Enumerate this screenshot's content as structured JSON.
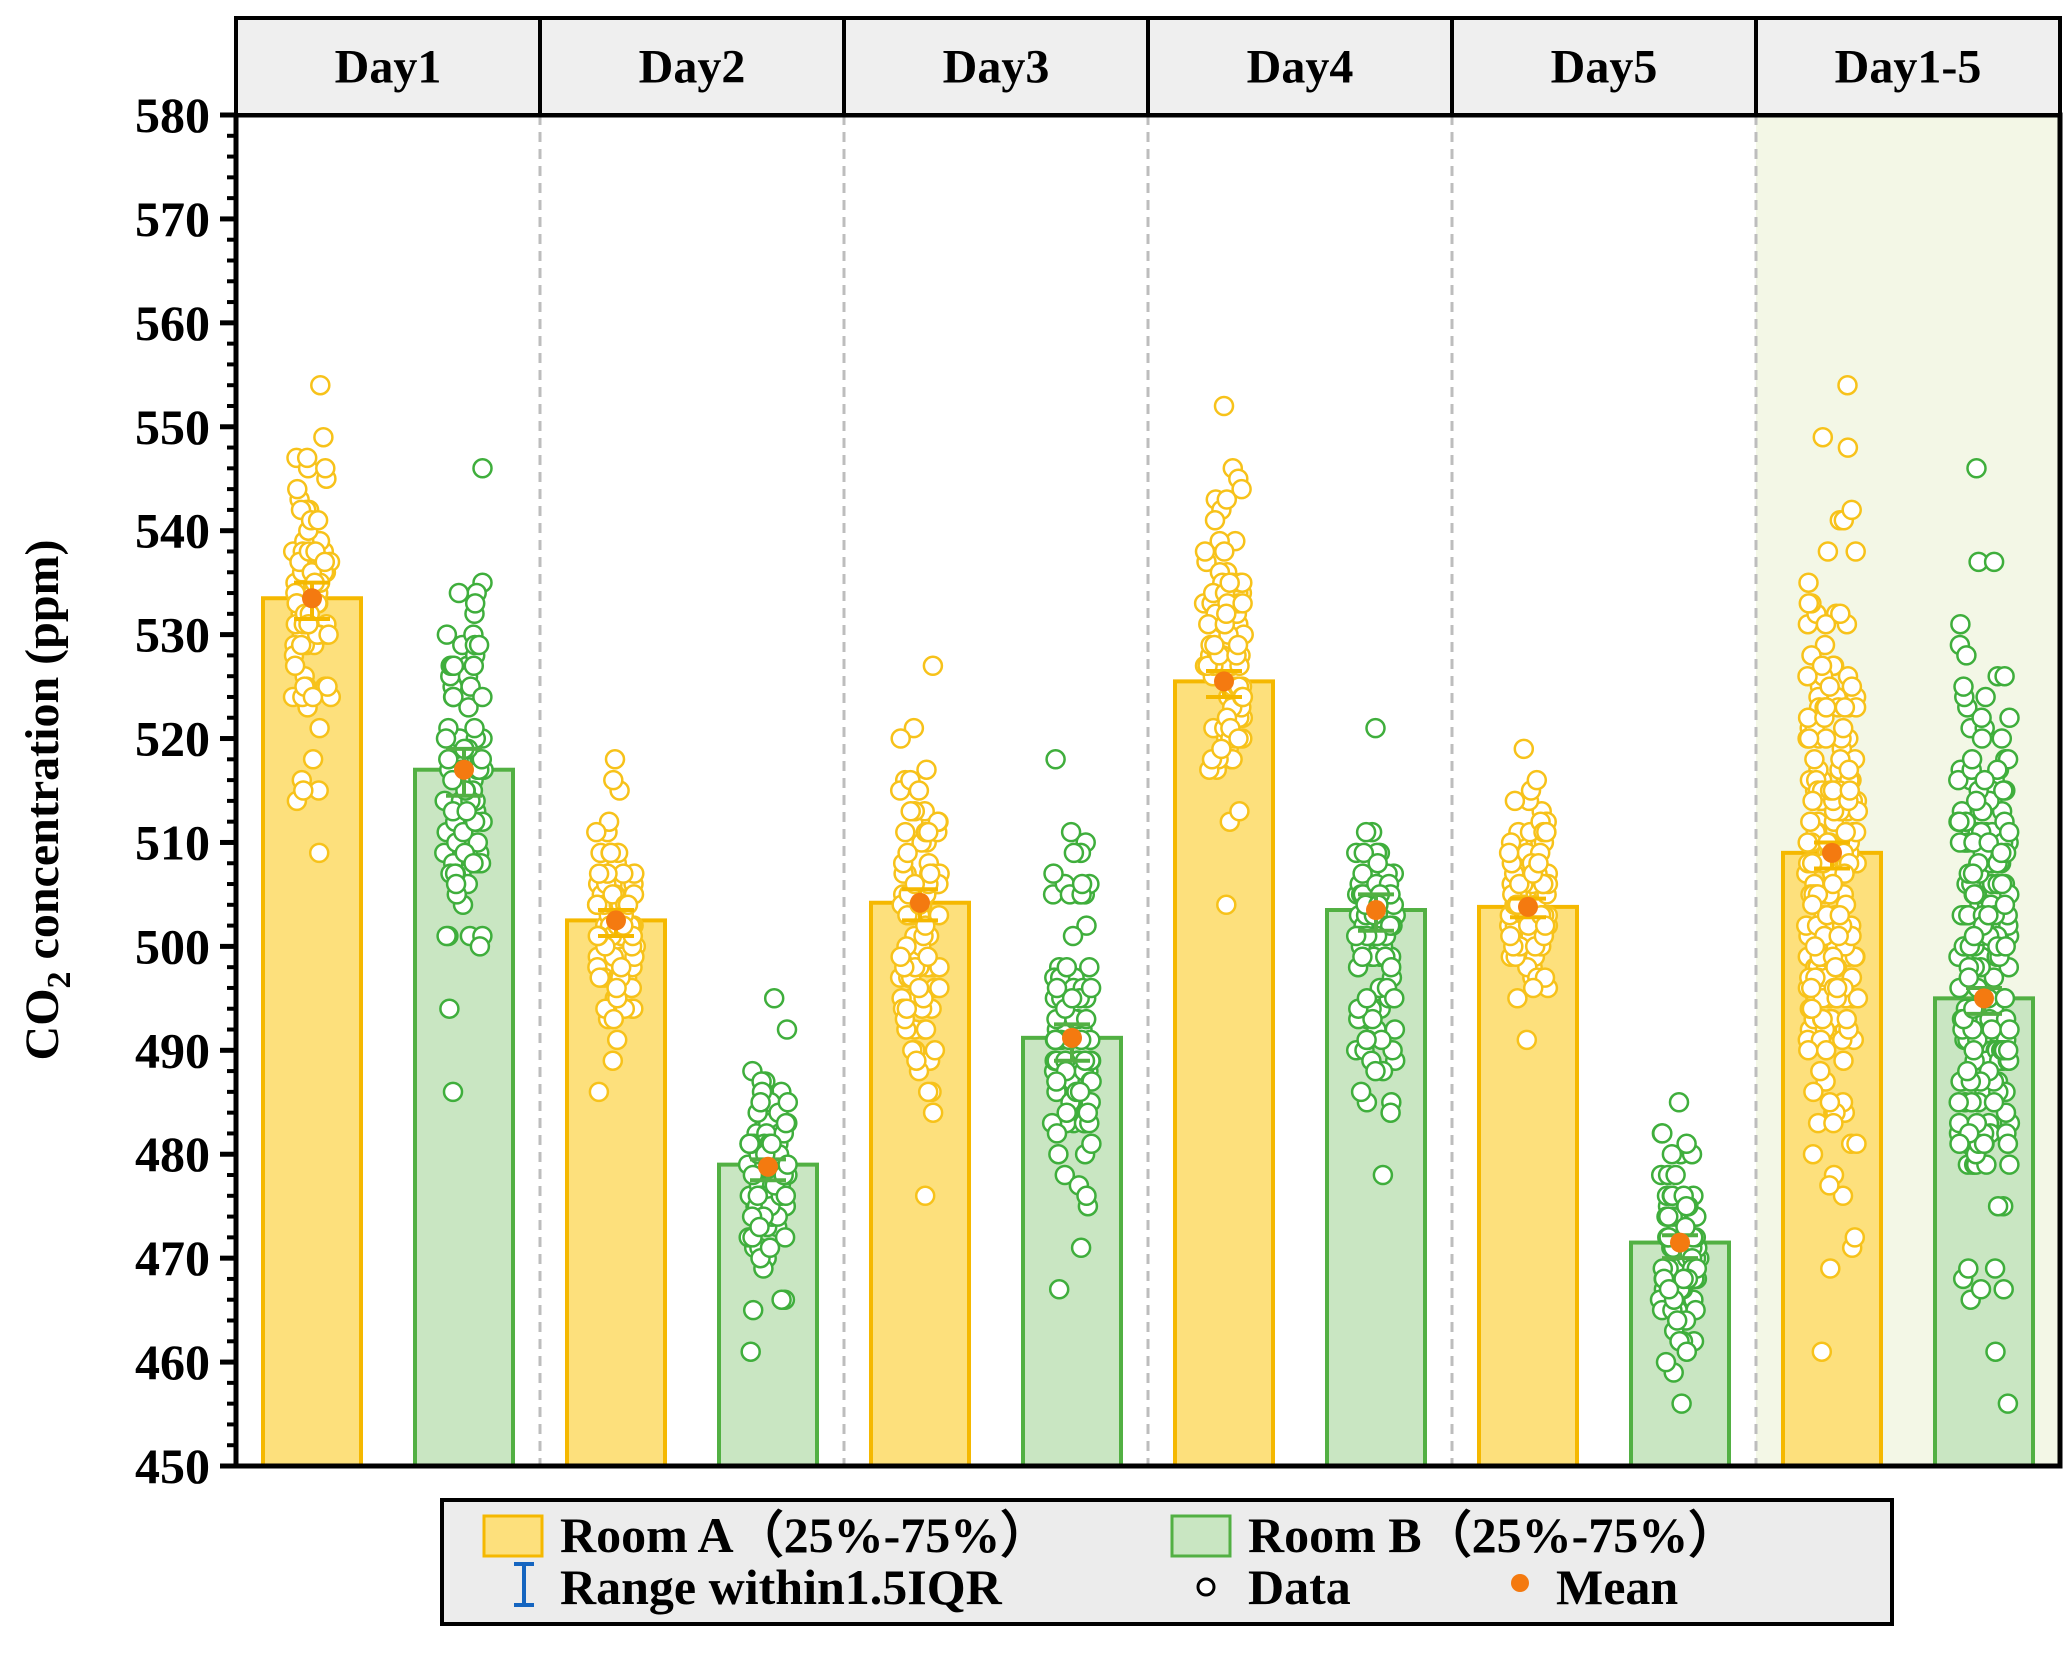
{
  "chart_data": {
    "type": "bar",
    "title": "",
    "ylabel": {
      "main": "CO",
      "sub": "2",
      "rest": " concentration (ppm)"
    },
    "ylim": [
      450,
      580
    ],
    "yticks": [
      450,
      460,
      470,
      480,
      490,
      500,
      510,
      520,
      530,
      540,
      550,
      560,
      570,
      580
    ],
    "categories": [
      "Day1",
      "Day2",
      "Day3",
      "Day4",
      "Day5",
      "Day1-5"
    ],
    "highlight_category": "Day1-5",
    "series": [
      {
        "name": "Room A",
        "fill": "#fde07c",
        "stroke": "#f5b800",
        "point_color": "#f7c21a",
        "values": [
          533.5,
          502.5,
          504.2,
          525.5,
          503.8,
          509.0
        ],
        "mean": [
          533.5,
          502.5,
          504.2,
          525.5,
          503.8,
          509.0
        ],
        "whisker_low": [
          531.5,
          501.0,
          502.5,
          524.0,
          502.8,
          507.5
        ],
        "whisker_high": [
          535.0,
          503.5,
          505.5,
          526.5,
          504.6,
          510.0
        ],
        "data_range": [
          [
            509,
            554
          ],
          [
            486,
            518
          ],
          [
            476,
            527
          ],
          [
            504,
            552
          ],
          [
            491,
            519
          ],
          [
            461,
            554
          ]
        ]
      },
      {
        "name": "Room B",
        "fill": "#c9e6c2",
        "stroke": "#52b043",
        "point_color": "#3fae3c",
        "values": [
          517.0,
          479.0,
          491.2,
          503.5,
          471.5,
          495.0
        ],
        "mean": [
          517.0,
          478.8,
          491.2,
          503.5,
          471.5,
          495.0
        ],
        "whisker_low": [
          514.5,
          477.5,
          489.0,
          501.5,
          470.0,
          493.5
        ],
        "whisker_high": [
          519.0,
          479.5,
          492.5,
          505.0,
          472.2,
          496.0
        ],
        "data_range": [
          [
            486,
            546
          ],
          [
            461,
            495
          ],
          [
            467,
            518
          ],
          [
            478,
            521
          ],
          [
            456,
            485
          ],
          [
            456,
            546
          ]
        ]
      }
    ],
    "mean_color": "#f47a10",
    "range_icon_color": "#1565c0",
    "legend": {
      "position": "bottom",
      "room_a": "Room A（25%-75%）",
      "room_b": "Room B（25%-75%）",
      "range": "Range within1.5IQR",
      "data": "Data",
      "mean": "Mean"
    }
  }
}
